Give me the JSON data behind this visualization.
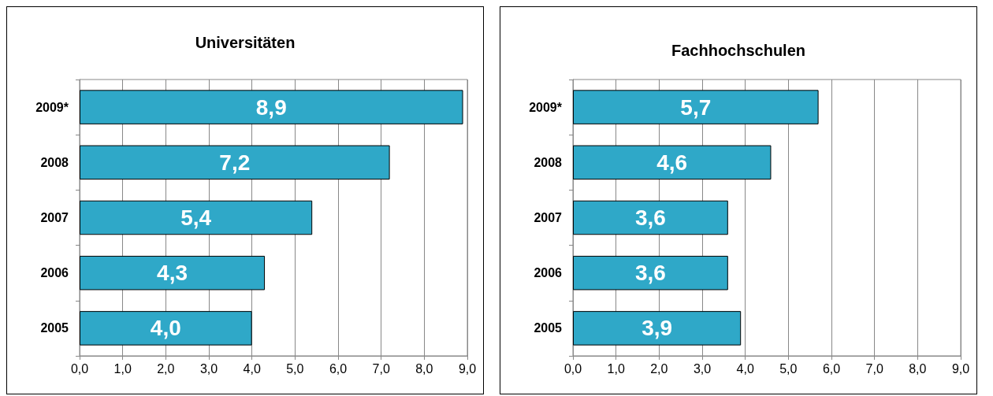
{
  "chart_data": [
    {
      "type": "bar",
      "title": "Universitäten",
      "orientation": "horizontal",
      "categories": [
        "2009*",
        "2008",
        "2007",
        "2006",
        "2005"
      ],
      "series": [
        {
          "color": "#2fa8c8",
          "values": [
            8.9,
            7.2,
            5.4,
            4.3,
            4.0
          ],
          "value_labels": [
            "8,9",
            "7,2",
            "5,4",
            "4,3",
            "4,0"
          ]
        }
      ],
      "xlim": [
        0,
        9
      ],
      "xticks": [
        {
          "value": 0,
          "label": "0,0"
        },
        {
          "value": 1,
          "label": "1,0"
        },
        {
          "value": 2,
          "label": "2,0"
        },
        {
          "value": 3,
          "label": "3,0"
        },
        {
          "value": 4,
          "label": "4,0"
        },
        {
          "value": 5,
          "label": "5,0"
        },
        {
          "value": 6,
          "label": "6,0"
        },
        {
          "value": 7,
          "label": "7,0"
        },
        {
          "value": 8,
          "label": "8,0"
        },
        {
          "value": 9,
          "label": "9,0"
        }
      ],
      "grid": "x"
    },
    {
      "type": "bar",
      "title": "Fachhochschulen",
      "orientation": "horizontal",
      "categories": [
        "2009*",
        "2008",
        "2007",
        "2006",
        "2005"
      ],
      "series": [
        {
          "color": "#2fa8c8",
          "values": [
            5.7,
            4.6,
            3.6,
            3.6,
            3.9
          ],
          "value_labels": [
            "5,7",
            "4,6",
            "3,6",
            "3,6",
            "3,9"
          ]
        }
      ],
      "xlim": [
        0,
        9
      ],
      "xticks": [
        {
          "value": 0,
          "label": "0,0"
        },
        {
          "value": 1,
          "label": "1,0"
        },
        {
          "value": 2,
          "label": "2,0"
        },
        {
          "value": 3,
          "label": "3,0"
        },
        {
          "value": 4,
          "label": "4,0"
        },
        {
          "value": 5,
          "label": "5,0"
        },
        {
          "value": 6,
          "label": "6,0"
        },
        {
          "value": 7,
          "label": "7,0"
        },
        {
          "value": 8,
          "label": "8,0"
        },
        {
          "value": 9,
          "label": "9,0"
        }
      ],
      "grid": "x"
    }
  ]
}
